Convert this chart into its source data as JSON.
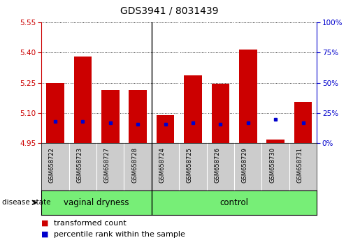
{
  "title": "GDS3941 / 8031439",
  "samples": [
    "GSM658722",
    "GSM658723",
    "GSM658727",
    "GSM658728",
    "GSM658724",
    "GSM658725",
    "GSM658726",
    "GSM658729",
    "GSM658730",
    "GSM658731"
  ],
  "bar_values": [
    5.25,
    5.38,
    5.215,
    5.215,
    5.09,
    5.285,
    5.245,
    5.415,
    4.97,
    5.155
  ],
  "blue_dot_values": [
    18,
    18,
    17,
    16,
    16,
    17,
    16,
    17,
    20,
    17
  ],
  "ylim_left": [
    4.95,
    5.55
  ],
  "ylim_right": [
    0,
    100
  ],
  "yticks_left": [
    4.95,
    5.1,
    5.25,
    5.4,
    5.55
  ],
  "yticks_right": [
    0,
    25,
    50,
    75,
    100
  ],
  "bar_color": "#cc0000",
  "dot_color": "#0000cc",
  "bar_bottom": 4.95,
  "groups": [
    {
      "label": "vaginal dryness",
      "start": 0,
      "end": 3
    },
    {
      "label": "control",
      "start": 4,
      "end": 9
    }
  ],
  "group_split": 3.5,
  "group_bg": "#77ee77",
  "xtick_bg": "#cccccc",
  "disease_state_label": "disease state",
  "legend_items": [
    {
      "label": "transformed count",
      "color": "#cc0000"
    },
    {
      "label": "percentile rank within the sample",
      "color": "#0000cc"
    }
  ],
  "bg_color": "#ffffff",
  "axis_color_left": "#cc0000",
  "axis_color_right": "#0000cc",
  "title_fontsize": 10,
  "tick_fontsize": 7.5,
  "sample_fontsize": 6,
  "group_fontsize": 8.5,
  "legend_fontsize": 8
}
